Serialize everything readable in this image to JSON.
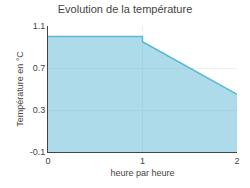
{
  "chart_data": {
    "type": "area",
    "title": "Evolution de la température",
    "xlabel": "heure par heure",
    "ylabel": "Température en °C",
    "x": [
      0,
      1,
      1,
      2
    ],
    "values": [
      1.0,
      1.0,
      0.95,
      0.45
    ],
    "color": "#5bb8d4",
    "xlim": [
      0,
      2
    ],
    "xticks": [
      0,
      1,
      2
    ],
    "ylim": [
      -0.1,
      1.1
    ],
    "yticks": [
      -0.1,
      0.3,
      0.7,
      1.1
    ],
    "grid": true
  }
}
